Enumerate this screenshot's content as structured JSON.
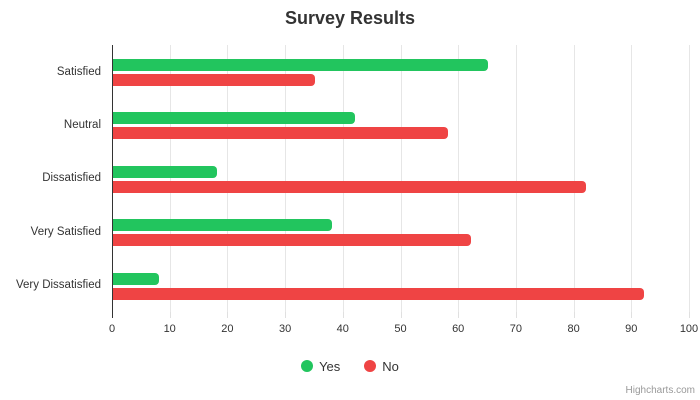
{
  "chart_data": {
    "type": "bar",
    "orientation": "horizontal",
    "title": "Survey Results",
    "categories": [
      "Satisfied",
      "Neutral",
      "Dissatisfied",
      "Very Satisfied",
      "Very Dissatisfied"
    ],
    "series": [
      {
        "name": "Yes",
        "color": "#22c55e",
        "values": [
          65,
          42,
          18,
          38,
          8
        ]
      },
      {
        "name": "No",
        "color": "#ef4444",
        "values": [
          35,
          58,
          82,
          62,
          92
        ]
      }
    ],
    "xlabel": "",
    "ylabel": "",
    "xlim": [
      0,
      100
    ],
    "xticks": [
      0,
      10,
      20,
      30,
      40,
      50,
      60,
      70,
      80,
      90,
      100
    ],
    "grid": true,
    "legend_position": "bottom-center"
  },
  "credits": "Highcharts.com",
  "colors": {
    "grid": "#e6e6e6",
    "axis_line": "#333333",
    "title": "#333333",
    "labels": "#333333",
    "credit": "#999999"
  }
}
